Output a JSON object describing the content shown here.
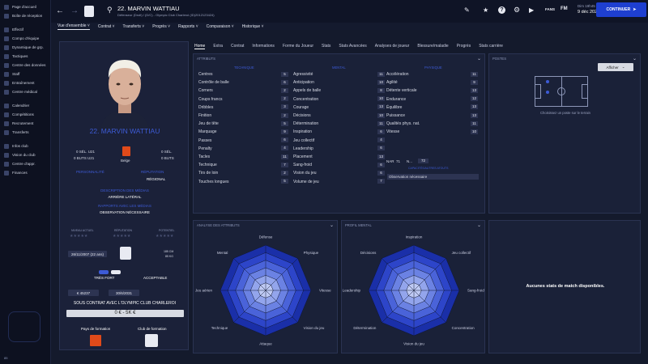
{
  "sidebar": {
    "items": [
      "Page d'accueil",
      "Boîte de réception",
      "Effectif",
      "Compo d'équipe",
      "Dynamique de grp.",
      "Tactiques",
      "Centre des données",
      "Staff",
      "Entraînement",
      "Centre médical",
      "Calendrier",
      "Compétitions",
      "Recrutement",
      "Transferts",
      "Infos club",
      "Vision du club",
      "Centre d'appr.",
      "Finances"
    ],
    "badge": "85"
  },
  "header": {
    "name": "22. MARVIN WATTIAU",
    "subtitle": "Défenseur (Droit) / (D/C) - Olympic Club Charleroi (ID)2012123424)",
    "day": "Dim 19h45",
    "date": "9 déc 2029",
    "continue": "CONTINUER",
    "fm": "FM"
  },
  "subnav": [
    "Vue d'ensemble",
    "Contrat",
    "Transferts",
    "Progrès",
    "Rapports",
    "Comparaison",
    "Historique"
  ],
  "tabs": [
    "Home",
    "Extra",
    "Contrat",
    "Informations",
    "Forme du Joueur",
    "Stats",
    "Stats Avancées",
    "Analyses de joueur",
    "Blessure/maladie",
    "Progrès",
    "Stats carrière"
  ],
  "profile": {
    "name": "22. MARVIN WATTIAU",
    "sel1": "0 SÉL. U21",
    "buts1": "0 BUTS U21",
    "sel2": "0 SÉL.",
    "buts2": "0 BUTS",
    "nation": "Belge",
    "personality_h": "PERSONNALITÉ",
    "reputation_h": "RÉPUTATION",
    "reputation": "RÉGIONAL",
    "media_h": "DESCRIPTION DES MÉDIAS",
    "media": "ARRIÈRE LATÉRAL",
    "reports_h": "RAPPORTS AVEC LES MÉDIAS",
    "reports": "OBSERVATION NÉCESSAIRE",
    "niv_act": "NIVEAU ACTUEL",
    "rep_h": "RÉPUTATION",
    "pot_h": "POTENTIEL",
    "dob": "26/11/2007 (22 ans)",
    "height": "185 CM",
    "weight": "85 KG",
    "pied": "TRÈS FORT",
    "pied2": "ACCEPTABLE",
    "value": "€ 45237",
    "contract_end": "30/6/2031",
    "contract": "SOUS CONTRAT AVEC L'OLYMPIC CLUB CHARLEROI",
    "wage": "0 € - 5K €",
    "pays_h": "Pays de formation",
    "club_h": "Club de formation"
  },
  "attributes": {
    "title": "ATTRIBUTS",
    "tech_h": "TECHNIQUE",
    "mental_h": "MENTAL",
    "phys_h": "PHYSIQUE",
    "tech": [
      [
        "Centres",
        "5"
      ],
      [
        "Contrôle de balle",
        "6"
      ],
      [
        "Corners",
        "2"
      ],
      [
        "Coups francs",
        "2"
      ],
      [
        "Dribbles",
        "3"
      ],
      [
        "Finition",
        "2"
      ],
      [
        "Jeu de tête",
        "5"
      ],
      [
        "Marquage",
        "9"
      ],
      [
        "Passes",
        "6"
      ],
      [
        "Penalty",
        "4"
      ],
      [
        "Tacles",
        "11"
      ],
      [
        "Technique",
        "7"
      ],
      [
        "Tirs de loin",
        "2"
      ],
      [
        "Touches longues",
        "5"
      ]
    ],
    "mental": [
      [
        "Agressivité",
        "11"
      ],
      [
        "Anticipation",
        "10"
      ],
      [
        "Appels de balle",
        "8"
      ],
      [
        "Concentration",
        "10"
      ],
      [
        "Courage",
        "13"
      ],
      [
        "Décisions",
        "10"
      ],
      [
        "Détermination",
        "11"
      ],
      [
        "Inspiration",
        "6"
      ],
      [
        "Jeu collectif",
        "4"
      ],
      [
        "Leadership",
        "6"
      ],
      [
        "Placement",
        "13"
      ],
      [
        "Sang-froid",
        "6"
      ],
      [
        "Vision du jeu",
        "6"
      ],
      [
        "Volume de jeu",
        "7"
      ]
    ],
    "phys": [
      [
        "Accélération",
        "11"
      ],
      [
        "Agilité",
        "9"
      ],
      [
        "Détente verticale",
        "13"
      ],
      [
        "Endurance",
        "12"
      ],
      [
        "Équilibre",
        "13"
      ],
      [
        "Puissance",
        "13"
      ],
      [
        "Qualités phys. nat.",
        "11"
      ],
      [
        "Vitesse",
        "10"
      ]
    ],
    "nar": "NAR",
    "nar_v": "71",
    "n_label": "N...",
    "n_v": "72",
    "obs_h": "CAPACITÉS/AUTRES ATOUTS",
    "obs": "Observation nécessaire"
  },
  "postes": {
    "title": "POSTES",
    "btn": "Afficher",
    "hint": "Choisissez un poste sur le terrain"
  },
  "analysis": {
    "title": "ANALYSE DES ATTRIBUTS",
    "labels": [
      "Défense",
      "Physique",
      "Vitesse",
      "Vision du jeu",
      "Attaque",
      "Technique",
      "Jeu aérien",
      "Mental"
    ]
  },
  "mental_profile": {
    "title": "PROFIL MENTAL",
    "labels": [
      "Inspiration",
      "Jeu collectif",
      "Sang-froid",
      "Concentration",
      "Vision du jeu",
      "Détermination",
      "Leadership",
      "Décisions"
    ]
  },
  "match": {
    "text": "Aucunes stats de match disponibles."
  }
}
